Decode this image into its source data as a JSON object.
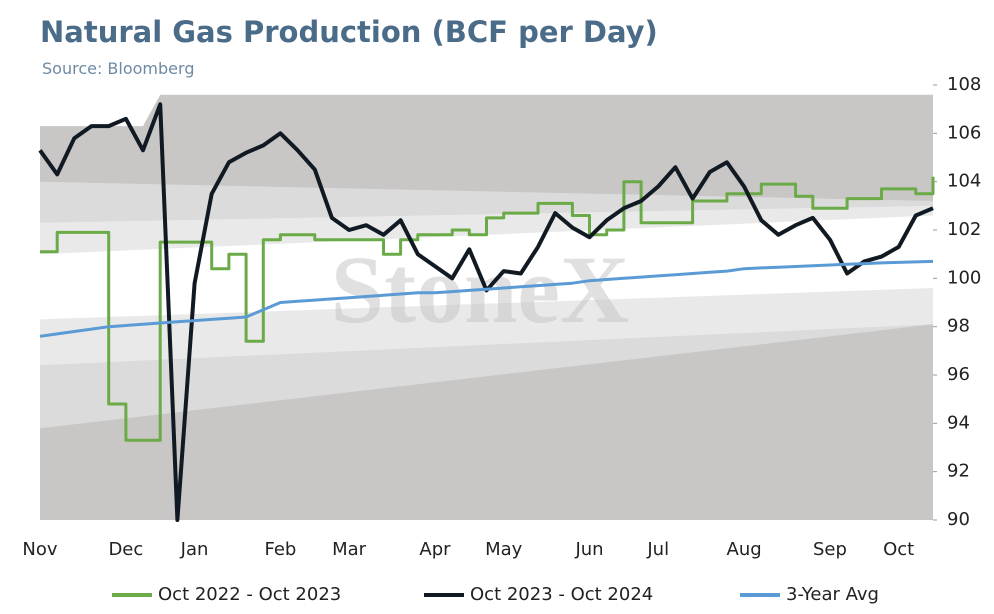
{
  "chart_data": {
    "type": "line",
    "title": "Natural Gas Production (BCF per Day)",
    "subtitle": "Source: Bloomberg",
    "watermark": "StoneX",
    "categories": [
      "Nov",
      null,
      null,
      null,
      null,
      "Dec",
      null,
      null,
      null,
      "Jan",
      null,
      null,
      null,
      null,
      "Feb",
      null,
      null,
      null,
      "Mar",
      null,
      null,
      null,
      null,
      "Apr",
      null,
      null,
      null,
      "May",
      null,
      null,
      null,
      null,
      "Jun",
      null,
      null,
      null,
      "Jul",
      null,
      null,
      null,
      null,
      "Aug",
      null,
      null,
      null,
      null,
      "Sep",
      null,
      null,
      null,
      "Oct",
      null,
      null
    ],
    "series": [
      {
        "name": "Oct 2022 - Oct 2023",
        "color": "#6aaa47",
        "step": true,
        "values": [
          101.1,
          101.9,
          101.9,
          101.9,
          94.8,
          93.3,
          93.3,
          101.5,
          101.5,
          101.5,
          100.4,
          101.0,
          97.4,
          101.6,
          101.8,
          101.8,
          101.6,
          101.6,
          101.6,
          101.6,
          101.0,
          101.6,
          101.8,
          101.8,
          102.0,
          101.8,
          102.5,
          102.7,
          102.7,
          103.1,
          103.1,
          102.6,
          101.8,
          102.0,
          104.0,
          102.3,
          102.3,
          102.3,
          103.2,
          103.2,
          103.5,
          103.5,
          103.9,
          103.9,
          103.4,
          102.9,
          102.9,
          103.3,
          103.3,
          103.7,
          103.7,
          103.5,
          104.2
        ]
      },
      {
        "name": "Oct 2023 - Oct 2024",
        "color": "#111a22",
        "width": 4,
        "values": [
          105.3,
          104.3,
          105.8,
          106.3,
          106.3,
          106.6,
          105.3,
          107.2,
          90.0,
          99.8,
          103.5,
          104.8,
          105.2,
          105.5,
          106.0,
          105.3,
          104.5,
          102.5,
          102.0,
          102.2,
          101.8,
          102.4,
          101.0,
          100.5,
          100.0,
          101.2,
          99.5,
          100.3,
          100.2,
          101.3,
          102.7,
          102.1,
          101.7,
          102.4,
          102.9,
          103.2,
          103.8,
          104.6,
          103.3,
          104.4,
          104.8,
          103.8,
          102.4,
          101.8,
          102.2,
          102.5,
          101.6,
          100.2,
          100.7,
          100.9,
          101.3,
          102.6,
          102.9
        ]
      },
      {
        "name": "3-Year Avg",
        "color": "#5b9bd5",
        "width": 3,
        "values": [
          97.6,
          97.7,
          97.8,
          97.9,
          98.0,
          98.05,
          98.1,
          98.15,
          98.2,
          98.25,
          98.3,
          98.35,
          98.4,
          98.7,
          99.0,
          99.05,
          99.1,
          99.15,
          99.2,
          99.25,
          99.3,
          99.35,
          99.4,
          99.4,
          99.45,
          99.5,
          99.55,
          99.6,
          99.65,
          99.7,
          99.75,
          99.8,
          99.9,
          99.95,
          100.0,
          100.05,
          100.1,
          100.15,
          100.2,
          100.25,
          100.3,
          100.4,
          100.43,
          100.46,
          100.49,
          100.52,
          100.55,
          100.58,
          100.61,
          100.64,
          100.66,
          100.68,
          100.7
        ]
      }
    ],
    "bands": [
      {
        "color": "#c9c7c6",
        "x": [
          0,
          6,
          7,
          52
        ],
        "lower": [
          90,
          90,
          90,
          90
        ],
        "upper": [
          106.3,
          106.3,
          107.6,
          107.6
        ]
      },
      {
        "color": "#dcdbdb",
        "x": [
          0,
          52
        ],
        "lower": [
          93.8,
          98.1
        ],
        "upper": [
          104.0,
          103.2
        ]
      },
      {
        "color": "#e9e9e9",
        "x": [
          0,
          52
        ],
        "lower": [
          96.4,
          98.1
        ],
        "upper": [
          102.3,
          103.0
        ]
      },
      {
        "color": "#ffffff",
        "x": [
          0,
          52
        ],
        "lower": [
          98.3,
          99.6
        ],
        "upper": [
          101.0,
          102.6
        ]
      }
    ],
    "ylim": [
      90,
      108
    ],
    "yticks": [
      90,
      92,
      94,
      96,
      98,
      100,
      102,
      104,
      106,
      108
    ],
    "y_axis_side": "right",
    "grid": false,
    "legend": "bottom"
  }
}
